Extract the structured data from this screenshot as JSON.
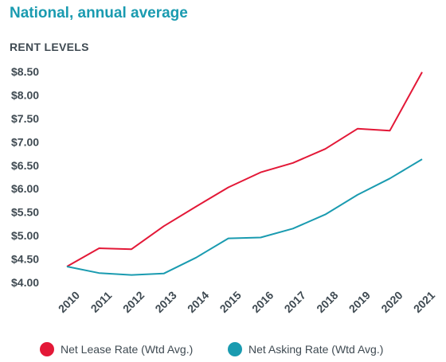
{
  "chart_data": {
    "type": "line",
    "title": "National, annual average",
    "subtitle": "RENT LEVELS",
    "categories": [
      "2010",
      "2011",
      "2012",
      "2013",
      "2014",
      "2015",
      "2016",
      "2017",
      "2018",
      "2019",
      "2020",
      "2021"
    ],
    "ylim": [
      4.0,
      8.5
    ],
    "yticks": [
      "$8.50",
      "$8.00",
      "$7.50",
      "$7.00",
      "$6.50",
      "$6.00",
      "$5.50",
      "$5.00",
      "$4.50",
      "$4.00"
    ],
    "ytick_values": [
      8.5,
      8.0,
      7.5,
      7.0,
      6.5,
      6.0,
      5.5,
      5.0,
      4.5,
      4.0
    ],
    "grid": false,
    "legend_position": "bottom",
    "series": [
      {
        "name": "Net Lease Rate (Wtd Avg.)",
        "color": "#e31837",
        "values": [
          4.34,
          4.73,
          4.71,
          5.2,
          5.62,
          6.03,
          6.35,
          6.55,
          6.85,
          7.28,
          7.24,
          8.49
        ]
      },
      {
        "name": "Net Asking Rate (Wtd Avg.)",
        "color": "#1a9bb0",
        "values": [
          4.34,
          4.2,
          4.16,
          4.19,
          4.53,
          4.94,
          4.96,
          5.15,
          5.45,
          5.87,
          6.22,
          6.63
        ]
      }
    ]
  }
}
